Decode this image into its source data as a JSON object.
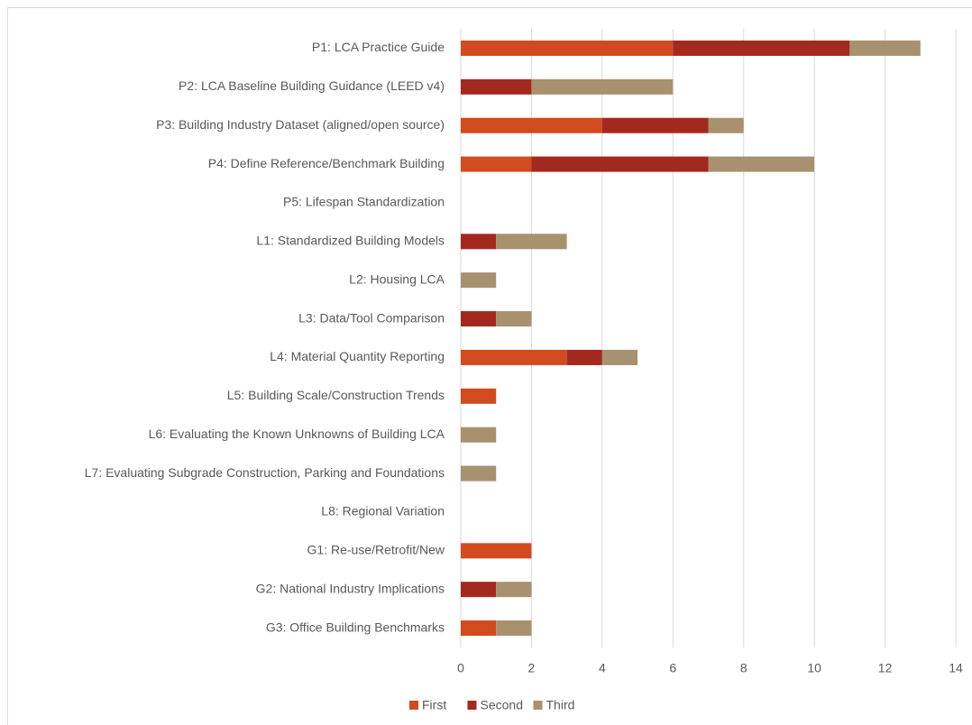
{
  "chart_data": {
    "type": "stacked-bar-horizontal",
    "categories": [
      "P1: LCA Practice Guide",
      "P2: LCA Baseline Building Guidance (LEED v4)",
      "P3: Building Industry Dataset (aligned/open source)",
      "P4: Define Reference/Benchmark Building",
      "P5: Lifespan Standardization",
      "L1: Standardized Building Models",
      "L2: Housing LCA",
      "L3: Data/Tool Comparison",
      "L4: Material Quantity Reporting",
      "L5: Building Scale/Construction Trends",
      "L6: Evaluating the Known Unknowns of Building LCA",
      "L7: Evaluating Subgrade Construction, Parking and Foundations",
      "L8: Regional Variation",
      "G1: Re-use/Retrofit/New",
      "G2: National Industry Implications",
      "G3: Office Building Benchmarks"
    ],
    "series": [
      {
        "name": "First",
        "color": "#d24b1e",
        "values": [
          6,
          0,
          4,
          2,
          0,
          0,
          0,
          0,
          3,
          1,
          0,
          0,
          0,
          2,
          0,
          1
        ]
      },
      {
        "name": "Second",
        "color": "#a3291e",
        "values": [
          5,
          2,
          3,
          5,
          0,
          1,
          0,
          1,
          1,
          0,
          0,
          0,
          0,
          0,
          1,
          0
        ]
      },
      {
        "name": "Third",
        "color": "#a8916f",
        "values": [
          2,
          4,
          1,
          3,
          0,
          2,
          1,
          1,
          1,
          0,
          1,
          1,
          0,
          0,
          1,
          1
        ]
      }
    ],
    "xlim": [
      0,
      14
    ],
    "xticks": [
      0,
      2,
      4,
      6,
      8,
      10,
      12,
      14
    ],
    "grid": true,
    "legend": "bottom"
  }
}
